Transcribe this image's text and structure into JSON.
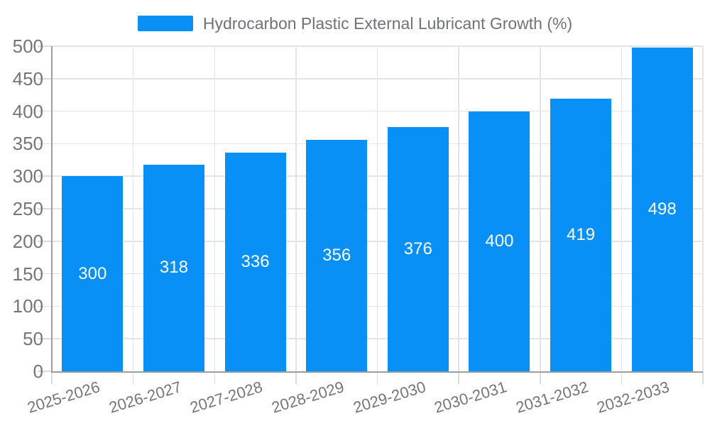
{
  "chart_data": {
    "type": "bar",
    "title": "Hydrocarbon Plastic External Lubricant Growth (%)",
    "categories": [
      "2025-2026",
      "2026-2027",
      "2027-2028",
      "2028-2029",
      "2029-2030",
      "2030-2031",
      "2031-2032",
      "2032-2033"
    ],
    "values": [
      300,
      318,
      336,
      356,
      376,
      400,
      419,
      498
    ],
    "yticks": [
      0,
      50,
      100,
      150,
      200,
      250,
      300,
      350,
      400,
      450,
      500
    ],
    "ylim": [
      0,
      500
    ],
    "xlabel": "",
    "ylabel": "",
    "grid": true,
    "legend_position": "top-center",
    "value_labels": "inside-middle",
    "colors": {
      "bar": "#0890F7",
      "value_label": "#FFFFFF",
      "axis": "#9B9DA0",
      "tick": "#DBDBDB",
      "gridline": "#E4E4E4",
      "text": "#737578",
      "background": "#FFFFFF"
    }
  }
}
